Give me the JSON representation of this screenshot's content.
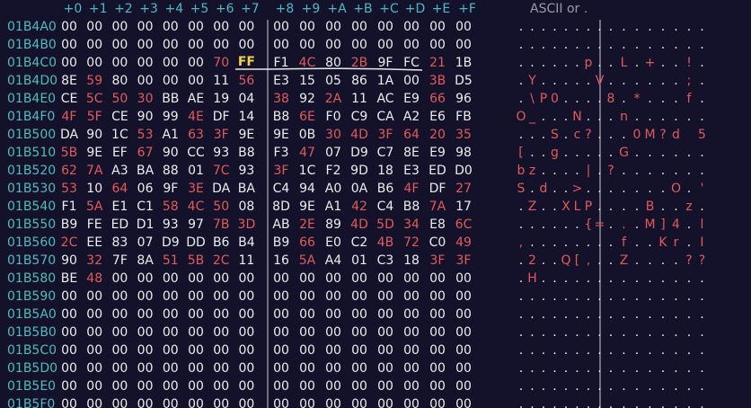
{
  "header": {
    "columns": [
      "+0",
      "+1",
      "+2",
      "+3",
      "+4",
      "+5",
      "+6",
      "+7",
      "+8",
      "+9",
      "+A",
      "+B",
      "+C",
      "+D",
      "+E",
      "+F"
    ],
    "ascii_title": "ASCII or ."
  },
  "rows": [
    {
      "address": "01B4A0",
      "bytes": [
        "00",
        "00",
        "00",
        "00",
        "00",
        "00",
        "00",
        "00",
        "00",
        "00",
        "00",
        "00",
        "00",
        "00",
        "00",
        "00"
      ],
      "ascii": [
        ".",
        ".",
        ".",
        ".",
        ".",
        ".",
        ".",
        ".",
        ".",
        ".",
        ".",
        ".",
        ".",
        ".",
        ".",
        "."
      ]
    },
    {
      "address": "01B4B0",
      "bytes": [
        "00",
        "00",
        "00",
        "00",
        "00",
        "00",
        "00",
        "00",
        "00",
        "00",
        "00",
        "00",
        "00",
        "00",
        "00",
        "00"
      ],
      "ascii": [
        ".",
        ".",
        ".",
        ".",
        ".",
        ".",
        ".",
        ".",
        ".",
        ".",
        ".",
        ".",
        ".",
        ".",
        ".",
        "."
      ]
    },
    {
      "address": "01B4C0",
      "bytes": [
        "00",
        "00",
        "00",
        "00",
        "00",
        "00",
        "70",
        "FF",
        "F1",
        "4C",
        "80",
        "2B",
        "9F",
        "FC",
        "21",
        "1B"
      ],
      "ascii": [
        ".",
        ".",
        ".",
        ".",
        ".",
        ".",
        "p",
        ".",
        ".",
        "L",
        ".",
        "+",
        ".",
        ".",
        "!",
        "."
      ]
    },
    {
      "address": "01B4D0",
      "bytes": [
        "8E",
        "59",
        "80",
        "00",
        "00",
        "00",
        "11",
        "56",
        "E3",
        "15",
        "05",
        "86",
        "1A",
        "00",
        "3B",
        "D5"
      ],
      "ascii": [
        ".",
        "Y",
        ".",
        ".",
        ".",
        ".",
        ".",
        "V",
        ".",
        ".",
        ".",
        ".",
        ".",
        ".",
        ";",
        "."
      ]
    },
    {
      "address": "01B4E0",
      "bytes": [
        "CE",
        "5C",
        "50",
        "30",
        "BB",
        "AE",
        "19",
        "04",
        "38",
        "92",
        "2A",
        "11",
        "AC",
        "E9",
        "66",
        "96"
      ],
      "ascii": [
        ".",
        "\\",
        "P",
        "0",
        ".",
        ".",
        ".",
        ".",
        "8",
        ".",
        "*",
        ".",
        ".",
        ".",
        "f",
        "."
      ]
    },
    {
      "address": "01B4F0",
      "bytes": [
        "4F",
        "5F",
        "CE",
        "90",
        "99",
        "4E",
        "DF",
        "14",
        "B8",
        "6E",
        "F0",
        "C9",
        "CA",
        "A2",
        "E6",
        "FB"
      ],
      "ascii": [
        "O",
        "_",
        ".",
        ".",
        ".",
        "N",
        ".",
        ".",
        ".",
        "n",
        ".",
        ".",
        ".",
        ".",
        ".",
        "."
      ]
    },
    {
      "address": "01B500",
      "bytes": [
        "DA",
        "90",
        "1C",
        "53",
        "A1",
        "63",
        "3F",
        "9E",
        "9E",
        "0B",
        "30",
        "4D",
        "3F",
        "64",
        "20",
        "35"
      ],
      "ascii": [
        ".",
        ".",
        ".",
        "S",
        ".",
        "c",
        "?",
        ".",
        ".",
        ".",
        "0",
        "M",
        "?",
        "d",
        " ",
        "5"
      ]
    },
    {
      "address": "01B510",
      "bytes": [
        "5B",
        "9E",
        "EF",
        "67",
        "90",
        "CC",
        "93",
        "B8",
        "F3",
        "47",
        "07",
        "D9",
        "C7",
        "8E",
        "E9",
        "98"
      ],
      "ascii": [
        "[",
        ".",
        ".",
        "g",
        ".",
        ".",
        ".",
        ".",
        ".",
        "G",
        ".",
        ".",
        ".",
        ".",
        ".",
        "."
      ]
    },
    {
      "address": "01B520",
      "bytes": [
        "62",
        "7A",
        "A3",
        "BA",
        "88",
        "01",
        "7C",
        "93",
        "3F",
        "1C",
        "F2",
        "9D",
        "18",
        "E3",
        "ED",
        "D0"
      ],
      "ascii": [
        "b",
        "z",
        ".",
        ".",
        ".",
        ".",
        "|",
        ".",
        "?",
        ".",
        ".",
        ".",
        ".",
        ".",
        ".",
        "."
      ]
    },
    {
      "address": "01B530",
      "bytes": [
        "53",
        "10",
        "64",
        "06",
        "9F",
        "3E",
        "DA",
        "BA",
        "C4",
        "94",
        "A0",
        "0A",
        "B6",
        "4F",
        "DF",
        "27"
      ],
      "ascii": [
        "S",
        ".",
        "d",
        ".",
        ".",
        ">",
        ".",
        ".",
        ".",
        ".",
        ".",
        ".",
        ".",
        "O",
        ".",
        "'"
      ]
    },
    {
      "address": "01B540",
      "bytes": [
        "F1",
        "5A",
        "E1",
        "C1",
        "58",
        "4C",
        "50",
        "08",
        "8D",
        "9E",
        "A1",
        "42",
        "C4",
        "B8",
        "7A",
        "17"
      ],
      "ascii": [
        ".",
        "Z",
        ".",
        ".",
        "X",
        "L",
        "P",
        ".",
        ".",
        ".",
        ".",
        "B",
        ".",
        ".",
        "z",
        "."
      ]
    },
    {
      "address": "01B550",
      "bytes": [
        "B9",
        "FE",
        "ED",
        "D1",
        "93",
        "97",
        "7B",
        "3D",
        "AB",
        "2E",
        "89",
        "4D",
        "5D",
        "34",
        "E8",
        "6C"
      ],
      "ascii": [
        ".",
        ".",
        ".",
        ".",
        ".",
        ".",
        "{",
        "=",
        ".",
        ".",
        ".",
        "M",
        "]",
        "4",
        ".",
        "l"
      ]
    },
    {
      "address": "01B560",
      "bytes": [
        "2C",
        "EE",
        "83",
        "07",
        "D9",
        "DD",
        "B6",
        "B4",
        "B9",
        "66",
        "E0",
        "C2",
        "4B",
        "72",
        "C0",
        "49"
      ],
      "ascii": [
        ",",
        ".",
        ".",
        ".",
        ".",
        ".",
        ".",
        ".",
        ".",
        "f",
        ".",
        ".",
        "K",
        "r",
        ".",
        "I"
      ]
    },
    {
      "address": "01B570",
      "bytes": [
        "90",
        "32",
        "7F",
        "8A",
        "51",
        "5B",
        "2C",
        "11",
        "16",
        "5A",
        "A4",
        "01",
        "C3",
        "18",
        "3F",
        "3F"
      ],
      "ascii": [
        ".",
        "2",
        ".",
        ".",
        "Q",
        "[",
        ",",
        ".",
        ".",
        "Z",
        ".",
        ".",
        ".",
        ".",
        "?",
        "?"
      ]
    },
    {
      "address": "01B580",
      "bytes": [
        "BE",
        "48",
        "00",
        "00",
        "00",
        "00",
        "00",
        "00",
        "00",
        "00",
        "00",
        "00",
        "00",
        "00",
        "00",
        "00"
      ],
      "ascii": [
        ".",
        "H",
        ".",
        ".",
        ".",
        ".",
        ".",
        ".",
        ".",
        ".",
        ".",
        ".",
        ".",
        ".",
        ".",
        "."
      ]
    },
    {
      "address": "01B590",
      "bytes": [
        "00",
        "00",
        "00",
        "00",
        "00",
        "00",
        "00",
        "00",
        "00",
        "00",
        "00",
        "00",
        "00",
        "00",
        "00",
        "00"
      ],
      "ascii": [
        ".",
        ".",
        ".",
        ".",
        ".",
        ".",
        ".",
        ".",
        ".",
        ".",
        ".",
        ".",
        ".",
        ".",
        ".",
        "."
      ]
    },
    {
      "address": "01B5A0",
      "bytes": [
        "00",
        "00",
        "00",
        "00",
        "00",
        "00",
        "00",
        "00",
        "00",
        "00",
        "00",
        "00",
        "00",
        "00",
        "00",
        "00"
      ],
      "ascii": [
        ".",
        ".",
        ".",
        ".",
        ".",
        ".",
        ".",
        ".",
        ".",
        ".",
        ".",
        ".",
        ".",
        ".",
        ".",
        "."
      ]
    },
    {
      "address": "01B5B0",
      "bytes": [
        "00",
        "00",
        "00",
        "00",
        "00",
        "00",
        "00",
        "00",
        "00",
        "00",
        "00",
        "00",
        "00",
        "00",
        "00",
        "00"
      ],
      "ascii": [
        ".",
        ".",
        ".",
        ".",
        ".",
        ".",
        ".",
        ".",
        ".",
        ".",
        ".",
        ".",
        ".",
        ".",
        ".",
        "."
      ]
    },
    {
      "address": "01B5C0",
      "bytes": [
        "00",
        "00",
        "00",
        "00",
        "00",
        "00",
        "00",
        "00",
        "00",
        "00",
        "00",
        "00",
        "00",
        "00",
        "00",
        "00"
      ],
      "ascii": [
        ".",
        ".",
        ".",
        ".",
        ".",
        ".",
        ".",
        ".",
        ".",
        ".",
        ".",
        ".",
        ".",
        ".",
        ".",
        "."
      ]
    },
    {
      "address": "01B5D0",
      "bytes": [
        "00",
        "00",
        "00",
        "00",
        "00",
        "00",
        "00",
        "00",
        "00",
        "00",
        "00",
        "00",
        "00",
        "00",
        "00",
        "00"
      ],
      "ascii": [
        ".",
        ".",
        ".",
        ".",
        ".",
        ".",
        ".",
        ".",
        ".",
        ".",
        ".",
        ".",
        ".",
        ".",
        ".",
        "."
      ]
    },
    {
      "address": "01B5E0",
      "bytes": [
        "00",
        "00",
        "00",
        "00",
        "00",
        "00",
        "00",
        "00",
        "00",
        "00",
        "00",
        "00",
        "00",
        "00",
        "00",
        "00"
      ],
      "ascii": [
        ".",
        ".",
        ".",
        ".",
        ".",
        ".",
        ".",
        ".",
        ".",
        ".",
        ".",
        ".",
        ".",
        ".",
        ".",
        "."
      ]
    },
    {
      "address": "01B5F0",
      "bytes": [
        "00",
        "00",
        "00",
        "00",
        "00",
        "00",
        "00",
        "00",
        "00",
        "00",
        "00",
        "00",
        "00",
        "00",
        "00",
        "00"
      ],
      "ascii": [
        ".",
        ".",
        ".",
        ".",
        ".",
        ".",
        ".",
        ".",
        ".",
        ".",
        ".",
        ".",
        ".",
        ".",
        ".",
        "."
      ]
    }
  ]
}
